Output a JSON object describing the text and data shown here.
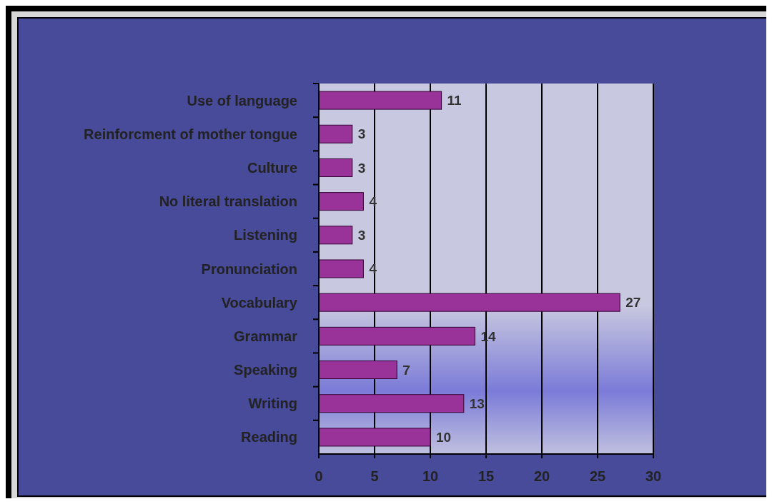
{
  "chart_data": {
    "type": "bar",
    "orientation": "horizontal",
    "categories": [
      "Use of language",
      "Reinforcment of mother tongue",
      "Culture",
      "No literal translation",
      "Listening",
      "Pronunciation",
      "Vocabulary",
      "Grammar",
      "Speaking",
      "Writing",
      "Reading"
    ],
    "values": [
      11,
      3,
      3,
      4,
      3,
      4,
      27,
      14,
      7,
      13,
      10
    ],
    "color": "#993399",
    "xlim": [
      0,
      30
    ],
    "xticks": [
      0,
      5,
      10,
      15,
      20,
      25,
      30
    ],
    "grid": "x",
    "data_labels": true
  }
}
